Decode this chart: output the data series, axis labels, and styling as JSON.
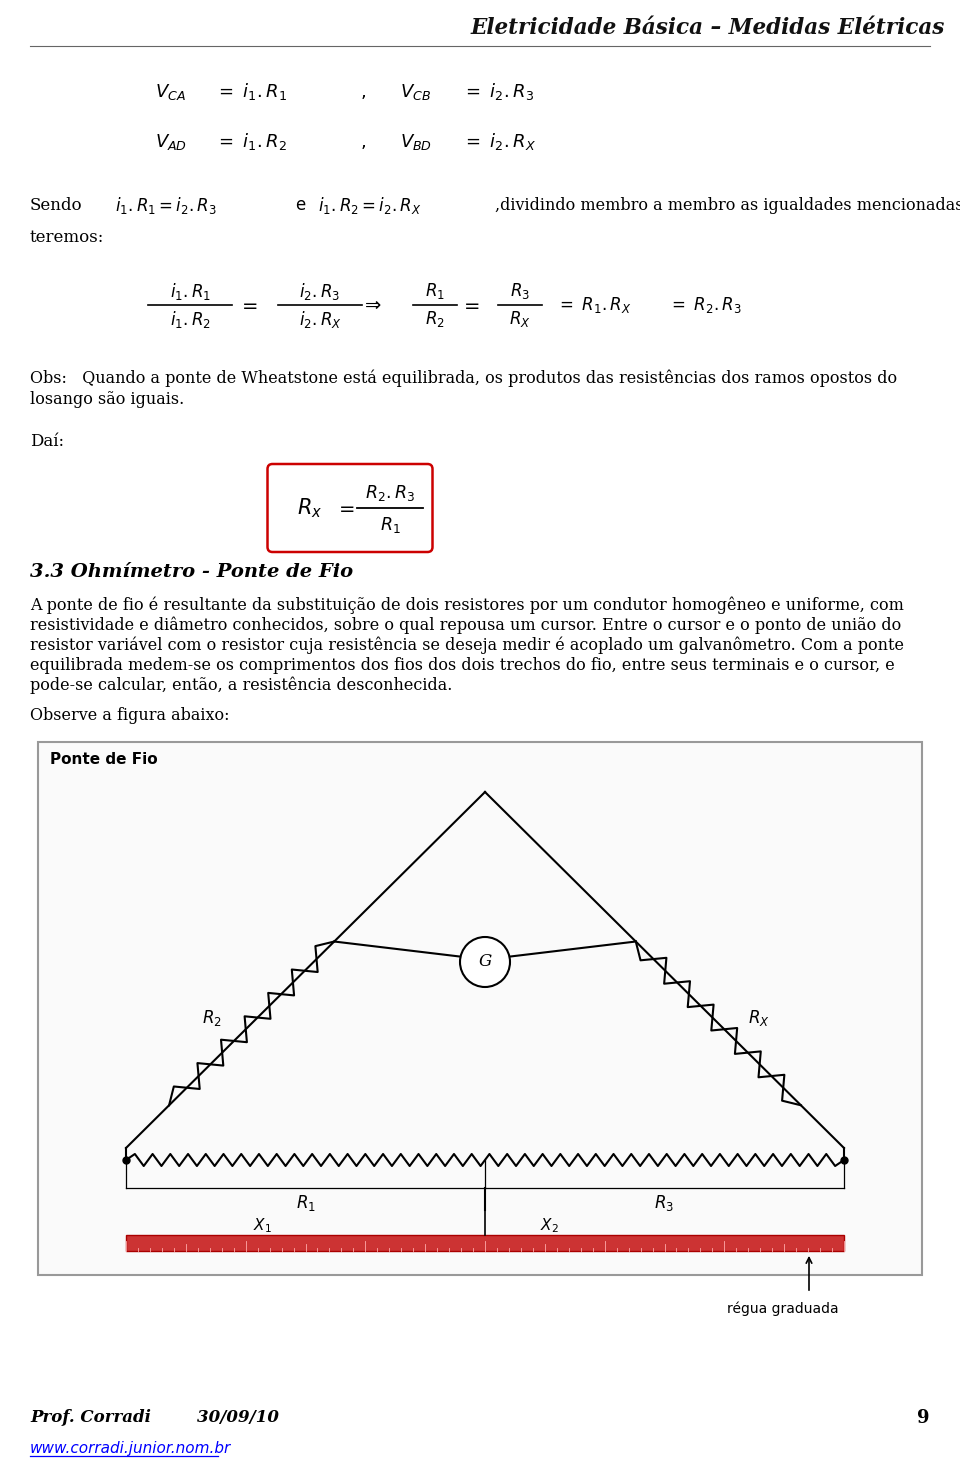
{
  "header_title": "Eletricidade Básica – Medidas Elétricas",
  "bg_color": "#ffffff",
  "text_color": "#000000",
  "footer_author": "Prof. Corradi",
  "footer_date": "30/09/10",
  "footer_page": "9",
  "footer_url": "www.corradi.junior.nom.br",
  "section_title": "3.3 Ohmímetro - Ponte de Fio",
  "body_text1": "A ponte de fio é resultante da substituição de dois resistores por um condutor homogêneo e uniforme, com",
  "body_text2": "resistividade e diâmetro conhecidos, sobre o qual repousa um cursor. Entre o cursor e o ponto de união do",
  "body_text3": "resistor variável com o resistor cuja resistência se deseja medir é acoplado um galvanômetro. Com a ponte",
  "body_text4": "equilibrada medem-se os comprimentos dos fios dos dois trechos do fio, entre seus terminais e o cursor, e",
  "body_text5": "pode-se calcular, então, a resistência desconhecida.",
  "obs_text1": "Obs:   Quando a ponte de Wheatstone está equilibrada, os produtos das resistências dos ramos opostos do",
  "obs_text2": "losango são iguais.",
  "dai_text": "Daí:",
  "sendo_text": "Sendo",
  "teremos_text": "teremos:",
  "observe_text": "Observe a figura abaixo:",
  "diagram_label": "Ponte de Fio",
  "regua_label": "régua graduada"
}
